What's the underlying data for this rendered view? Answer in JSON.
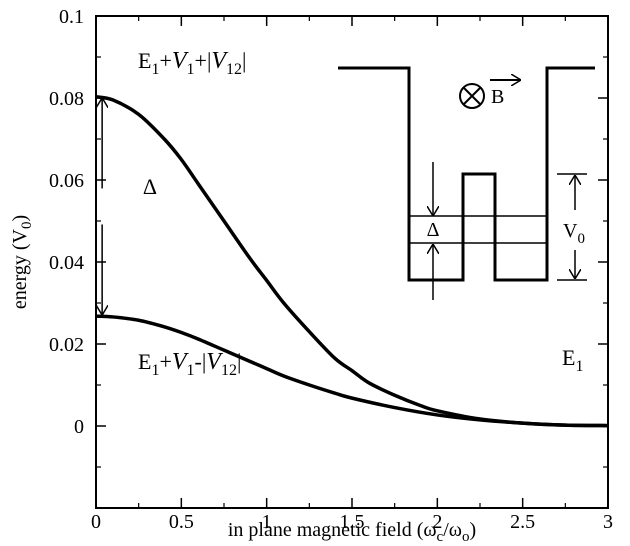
{
  "chart_data": {
    "type": "line",
    "xlabel": "in plane magnetic field (ω",
    "xlabel_sub1": "c",
    "xlabel_mid": "/ω",
    "xlabel_sub2": "o",
    "xlabel_end": ")",
    "ylabel": "energy  (V",
    "ylabel_sub": "0",
    "ylabel_end": ")",
    "xlim": [
      0,
      3
    ],
    "ylim": [
      -0.02,
      0.1
    ],
    "x_ticks": [
      0,
      0.5,
      1,
      1.5,
      2,
      2.5,
      3
    ],
    "x_tick_labels": [
      "0",
      "0.5",
      "1",
      "1.5",
      "2",
      "2.5",
      "3"
    ],
    "y_ticks": [
      0,
      0.02,
      0.04,
      0.06,
      0.08,
      0.1
    ],
    "y_tick_labels": [
      "0",
      "0.02",
      "0.04",
      "0.06",
      "0.08",
      "0.1"
    ],
    "grid": false,
    "series": [
      {
        "label_parts": [
          "E",
          "1",
          "+",
          "V",
          "1",
          "+|",
          "V",
          "12",
          "|"
        ],
        "x": [
          0,
          0.1,
          0.25,
          0.4,
          0.5,
          0.6,
          0.75,
          0.9,
          1.0,
          1.1,
          1.25,
          1.4,
          1.5,
          1.6,
          1.75,
          1.9,
          2.0,
          2.25,
          2.5,
          2.75,
          3.0
        ],
        "y": [
          0.0803,
          0.0795,
          0.076,
          0.07,
          0.065,
          0.059,
          0.05,
          0.041,
          0.0355,
          0.03,
          0.023,
          0.0165,
          0.0135,
          0.0105,
          0.0075,
          0.005,
          0.0037,
          0.0017,
          0.0007,
          0.0002,
          0.0001
        ]
      },
      {
        "label_parts": [
          "E",
          "1",
          "+",
          "V",
          "1",
          "-|",
          "V",
          "12",
          "|"
        ],
        "x": [
          0,
          0.1,
          0.25,
          0.4,
          0.5,
          0.6,
          0.75,
          0.9,
          1.0,
          1.1,
          1.25,
          1.4,
          1.5,
          1.75,
          2.0,
          2.25,
          2.5,
          2.75,
          3.0
        ],
        "y": [
          0.0268,
          0.0266,
          0.0258,
          0.0242,
          0.0228,
          0.0212,
          0.0185,
          0.0158,
          0.014,
          0.0122,
          0.01,
          0.008,
          0.0068,
          0.0045,
          0.0027,
          0.0015,
          0.0007,
          0.0002,
          0.0001
        ]
      }
    ],
    "annotations": {
      "delta": "Δ",
      "e1_base": "E",
      "e1_sub": "1",
      "delta_arrow": {
        "x": 0.2,
        "y_top": 0.0803,
        "y_bottom": 0.0268
      }
    },
    "inset": {
      "b_label": "B",
      "v0_base": "V",
      "v0_sub": "0",
      "delta": "Δ"
    }
  }
}
